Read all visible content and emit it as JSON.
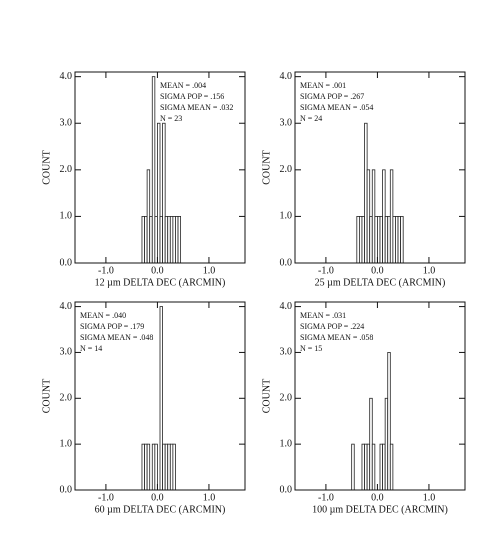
{
  "chart_data": [
    {
      "type": "histogram",
      "xlabel": "12 µm DELTA DEC (ARCMIN)",
      "ylabel": "COUNT",
      "annotations": [
        "MEAN = .004",
        "SIGMA POP = .156",
        "SIGMA MEAN = .032",
        "N = 23"
      ],
      "bins": [
        -0.3,
        -0.25,
        -0.2,
        -0.15,
        -0.1,
        -0.05,
        0,
        0.05,
        0.1,
        0.15,
        0.2,
        0.25,
        0.3,
        0.35,
        0.4,
        0.45
      ],
      "values": [
        1,
        1,
        2,
        1,
        4,
        1,
        3,
        1,
        3,
        1,
        1,
        1,
        1,
        1,
        1
      ],
      "xlim": [
        -1.6,
        1.7
      ],
      "ylim": [
        0,
        4.1
      ],
      "xticks": [
        {
          "value": -1,
          "label": "-1.0"
        },
        {
          "value": 0,
          "label": "0.0"
        },
        {
          "value": 1,
          "label": "1.0"
        }
      ],
      "yticks": [
        {
          "value": 0,
          "label": "0.0"
        },
        {
          "value": 1,
          "label": "1.0"
        },
        {
          "value": 2,
          "label": "2.0"
        },
        {
          "value": 3,
          "label": "3.0"
        },
        {
          "value": 4,
          "label": "4.0"
        }
      ]
    },
    {
      "type": "histogram",
      "xlabel": "25 µm DELTA DEC (ARCMIN)",
      "ylabel": "COUNT",
      "annotations": [
        "MEAN = .001",
        "SIGMA POP = .267",
        "SIGMA MEAN = .054",
        "N = 24"
      ],
      "bins": [
        -0.4,
        -0.35,
        -0.3,
        -0.25,
        -0.2,
        -0.15,
        -0.1,
        -0.05,
        0,
        0.05,
        0.1,
        0.15,
        0.2,
        0.25,
        0.3,
        0.35,
        0.4,
        0.45,
        0.5
      ],
      "values": [
        1,
        1,
        1,
        3,
        2,
        1,
        2,
        1,
        1,
        1,
        2,
        1,
        1,
        2,
        1,
        1,
        1,
        1
      ],
      "xlim": [
        -1.6,
        1.7
      ],
      "ylim": [
        0,
        4.1
      ],
      "xticks": [
        {
          "value": -1,
          "label": "-1.0"
        },
        {
          "value": 0,
          "label": "0.0"
        },
        {
          "value": 1,
          "label": "1.0"
        }
      ],
      "yticks": [
        {
          "value": 0,
          "label": "0.0"
        },
        {
          "value": 1,
          "label": "1.0"
        },
        {
          "value": 2,
          "label": "2.0"
        },
        {
          "value": 3,
          "label": "3.0"
        },
        {
          "value": 4,
          "label": "4.0"
        }
      ]
    },
    {
      "type": "histogram",
      "xlabel": "60 µm DELTA DEC (ARCMIN)",
      "ylabel": "COUNT",
      "annotations": [
        "MEAN = .040",
        "SIGMA POP = .179",
        "SIGMA MEAN = .048",
        "N = 14"
      ],
      "bins": [
        -0.3,
        -0.25,
        -0.2,
        -0.15,
        -0.1,
        -0.05,
        0,
        0.05,
        0.1,
        0.15,
        0.2,
        0.25,
        0.3,
        0.35
      ],
      "values": [
        1,
        1,
        1,
        0,
        1,
        1,
        0,
        4,
        1,
        1,
        1,
        1,
        1
      ],
      "xlim": [
        -1.6,
        1.7
      ],
      "ylim": [
        0,
        4.1
      ],
      "xticks": [
        {
          "value": -1,
          "label": "-1.0"
        },
        {
          "value": 0,
          "label": "0.0"
        },
        {
          "value": 1,
          "label": "1.0"
        }
      ],
      "yticks": [
        {
          "value": 0,
          "label": "0.0"
        },
        {
          "value": 1,
          "label": "1.0"
        },
        {
          "value": 2,
          "label": "2.0"
        },
        {
          "value": 3,
          "label": "3.0"
        },
        {
          "value": 4,
          "label": "4.0"
        }
      ]
    },
    {
      "type": "histogram",
      "xlabel": "100 µm DELTA DEC (ARCMIN)",
      "ylabel": "COUNT",
      "annotations": [
        "MEAN = .031",
        "SIGMA POP = .224",
        "SIGMA MEAN = .058",
        "N = 15"
      ],
      "bins": [
        -0.5,
        -0.45,
        -0.4,
        -0.35,
        -0.3,
        -0.25,
        -0.2,
        -0.15,
        -0.1,
        -0.05,
        0,
        0.05,
        0.1,
        0.15,
        0.2,
        0.25,
        0.3
      ],
      "values": [
        1,
        0,
        0,
        0,
        1,
        1,
        1,
        2,
        1,
        0,
        0,
        1,
        1,
        2,
        3,
        1
      ],
      "xlim": [
        -1.6,
        1.7
      ],
      "ylim": [
        0,
        4.1
      ],
      "xticks": [
        {
          "value": -1,
          "label": "-1.0"
        },
        {
          "value": 0,
          "label": "0.0"
        },
        {
          "value": 1,
          "label": "1.0"
        }
      ],
      "yticks": [
        {
          "value": 0,
          "label": "0.0"
        },
        {
          "value": 1,
          "label": "1.0"
        },
        {
          "value": 2,
          "label": "2.0"
        },
        {
          "value": 3,
          "label": "3.0"
        },
        {
          "value": 4,
          "label": "4.0"
        }
      ]
    }
  ]
}
